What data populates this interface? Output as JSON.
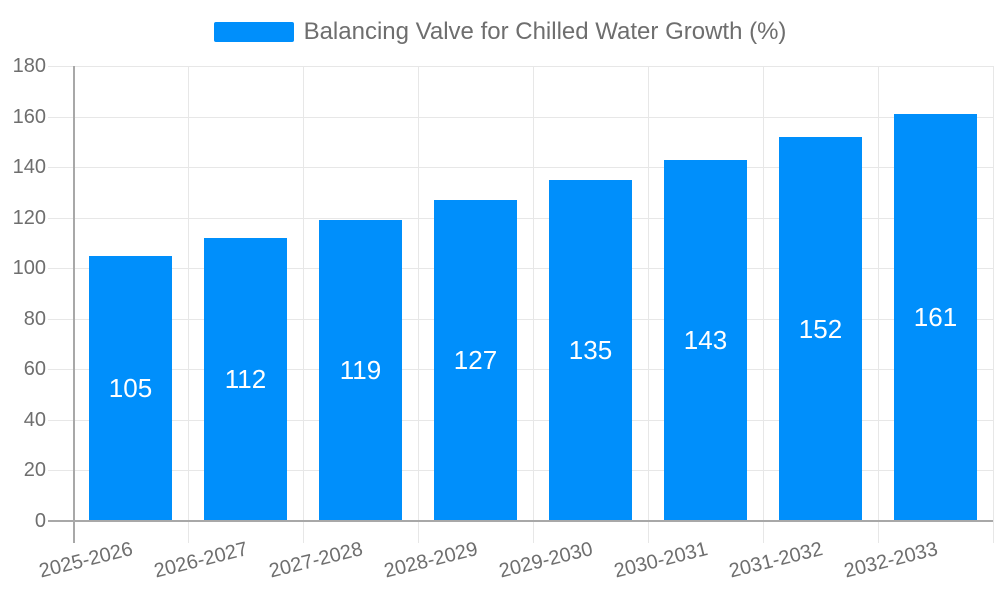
{
  "legend": {
    "label": "Balancing Valve for Chilled Water Growth (%)"
  },
  "colors": {
    "bar": "#008FFB",
    "grid": "#e7e7e7",
    "axis": "#a8a8a8",
    "tick_text": "#6e6e6e",
    "value_text": "#ffffff",
    "background": "#ffffff"
  },
  "chart_data": {
    "type": "bar",
    "title": "Balancing Valve for Chilled Water Growth (%)",
    "categories": [
      "2025-2026",
      "2026-2027",
      "2027-2028",
      "2028-2029",
      "2029-2030",
      "2030-2031",
      "2031-2032",
      "2032-2033"
    ],
    "values": [
      105,
      112,
      119,
      127,
      135,
      143,
      152,
      161
    ],
    "series": [
      {
        "name": "Balancing Valve for Chilled Water Growth (%)",
        "values": [
          105,
          112,
          119,
          127,
          135,
          143,
          152,
          161
        ]
      }
    ],
    "xlabel": "",
    "ylabel": "",
    "ylim": [
      0,
      180
    ],
    "yticks": [
      0,
      20,
      40,
      60,
      80,
      100,
      120,
      140,
      160,
      180
    ],
    "grid": true,
    "data_labels": true,
    "legend_position": "top",
    "x_label_rotation_deg": -14
  }
}
